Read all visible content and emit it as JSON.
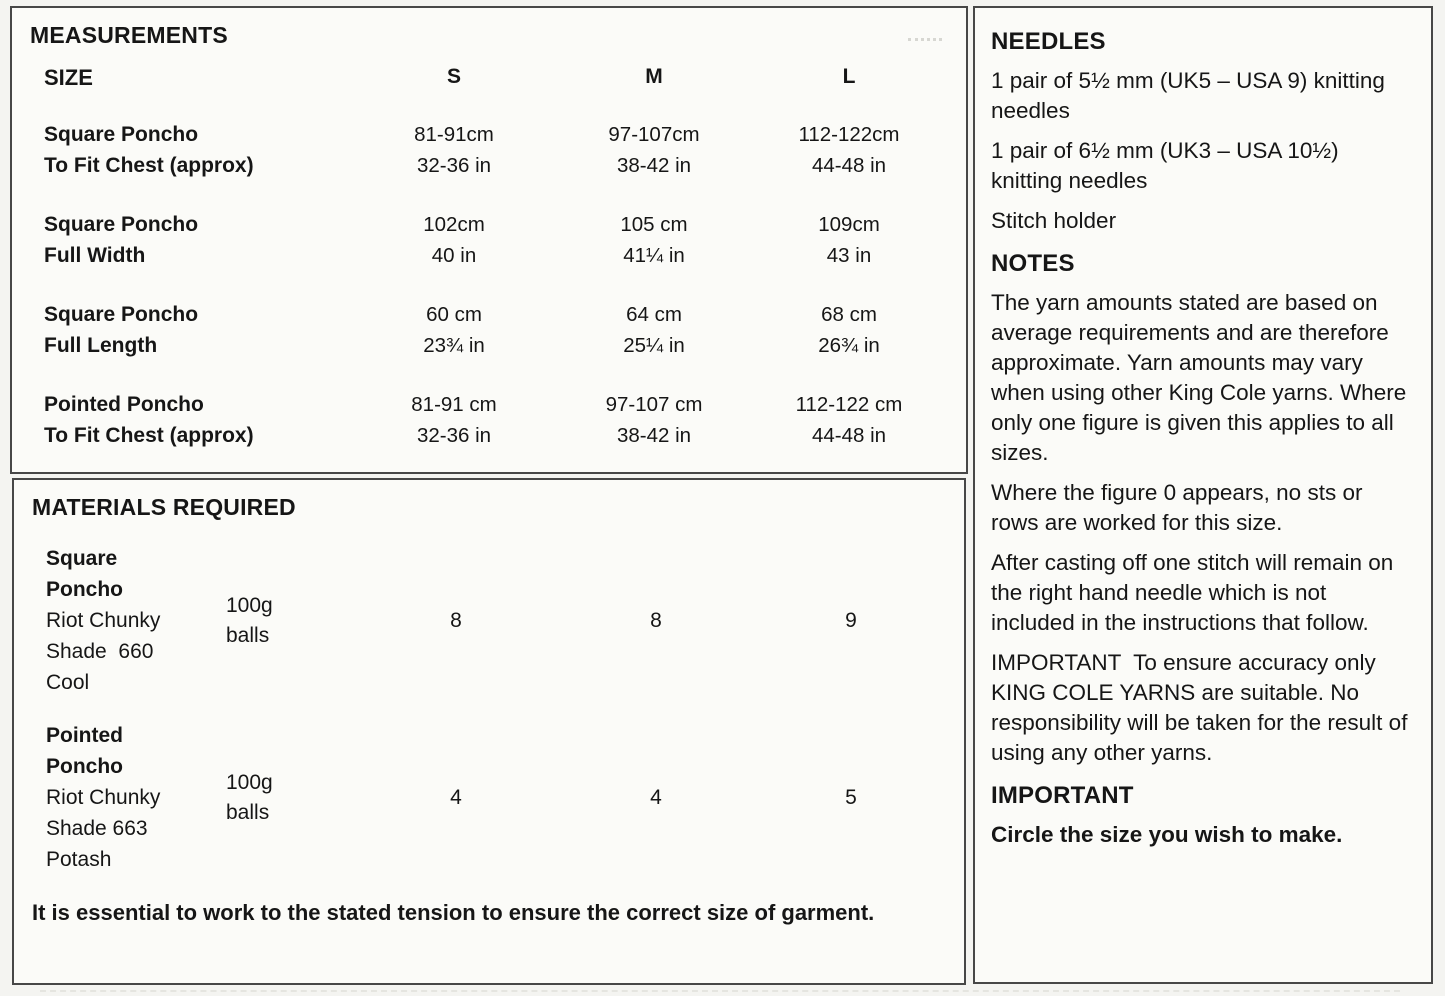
{
  "measurements": {
    "title": "MEASUREMENTS",
    "size_label": "SIZE",
    "columns": [
      "S",
      "M",
      "L"
    ],
    "rows": [
      {
        "label": [
          "Square Poncho",
          "To Fit Chest (approx)"
        ],
        "values": [
          [
            "81-91cm",
            "32-36 in"
          ],
          [
            "97-107cm",
            "38-42 in"
          ],
          [
            "112-122cm",
            "44-48 in"
          ]
        ]
      },
      {
        "label": [
          "Square Poncho",
          "Full Width"
        ],
        "values": [
          [
            "102cm",
            "40 in"
          ],
          [
            "105 cm",
            "41¼ in"
          ],
          [
            "109cm",
            "43 in"
          ]
        ]
      },
      {
        "label": [
          "Square Poncho",
          "Full Length"
        ],
        "values": [
          [
            "60 cm",
            "23¾ in"
          ],
          [
            "64 cm",
            "25¼ in"
          ],
          [
            "68 cm",
            "26¾ in"
          ]
        ]
      },
      {
        "label": [
          "Pointed Poncho",
          "To Fit Chest (approx)"
        ],
        "values": [
          [
            "81-91 cm",
            "32-36 in"
          ],
          [
            "97-107 cm",
            "38-42 in"
          ],
          [
            "112-122 cm",
            "44-48 in"
          ]
        ]
      }
    ]
  },
  "materials": {
    "title": "MATERIALS REQUIRED",
    "items": [
      {
        "name_bold": [
          "Square",
          "Poncho"
        ],
        "name_rest": [
          "Riot Chunky",
          "Shade  660",
          "Cool"
        ],
        "unit": [
          "100g",
          "balls"
        ],
        "quantities": [
          "8",
          "8",
          "9"
        ]
      },
      {
        "name_bold": [
          "Pointed",
          "Poncho"
        ],
        "name_rest": [
          "Riot Chunky",
          "Shade 663",
          "Potash"
        ],
        "unit": [
          "100g",
          "balls"
        ],
        "quantities": [
          "4",
          "4",
          "5"
        ]
      }
    ],
    "tension_note": "It is essential to work to the stated tension to ensure the correct size of garment."
  },
  "right_panel": {
    "needles": {
      "title": "NEEDLES",
      "items": [
        "1 pair of 5½ mm (UK5 – USA 9) knitting needles",
        "1 pair of 6½ mm (UK3 – USA 10½) knitting needles",
        "Stitch holder"
      ]
    },
    "notes": {
      "title": "NOTES",
      "paragraphs": [
        "The yarn amounts stated are based on average requirements and are therefore approximate. Yarn amounts may vary when using other King Cole yarns. Where only one figure is given this applies to all sizes.",
        "Where the figure 0 appears, no sts or rows are worked for this size.",
        "After casting off one stitch will remain on the right hand needle which is not included in the instructions that follow.",
        "IMPORTANT  To ensure accuracy only KING COLE YARNS are suitable. No responsibility will be taken for the result of using any other yarns."
      ]
    },
    "important": {
      "title": "IMPORTANT",
      "text": "Circle the size you wish to make."
    }
  }
}
